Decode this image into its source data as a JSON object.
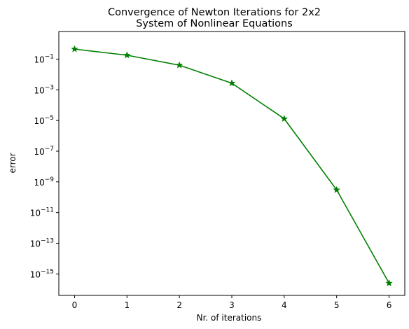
{
  "chart_data": {
    "type": "line",
    "title_lines": [
      "Convergence of Newton Iterations for 2x2",
      "System of Nonlinear Equations"
    ],
    "xlabel": "Nr. of iterations",
    "ylabel": "error",
    "y_scale": "log",
    "x_ticks": [
      "0",
      "1",
      "2",
      "3",
      "4",
      "5",
      "6"
    ],
    "y_ticks": [
      {
        "exp": -15,
        "label": "10",
        "sup": "−15"
      },
      {
        "exp": -13,
        "label": "10",
        "sup": "−13"
      },
      {
        "exp": -11,
        "label": "10",
        "sup": "−11"
      },
      {
        "exp": -9,
        "label": "10",
        "sup": "−9"
      },
      {
        "exp": -7,
        "label": "10",
        "sup": "−7"
      },
      {
        "exp": -5,
        "label": "10",
        "sup": "−5"
      },
      {
        "exp": -3,
        "label": "10",
        "sup": "−3"
      },
      {
        "exp": -1,
        "label": "10",
        "sup": "−1"
      }
    ],
    "xlim": [
      -0.3,
      6.3
    ],
    "ylim_log10": [
      -16.4,
      0.8
    ],
    "series": [
      {
        "color": "#008000",
        "marker": "star",
        "x": [
          0,
          1,
          2,
          3,
          4,
          5,
          6
        ],
        "y": [
          0.45,
          0.18,
          0.04,
          0.0027,
          1.3e-05,
          3e-10,
          2.5e-16
        ]
      }
    ],
    "grid": false,
    "legend": "none"
  }
}
